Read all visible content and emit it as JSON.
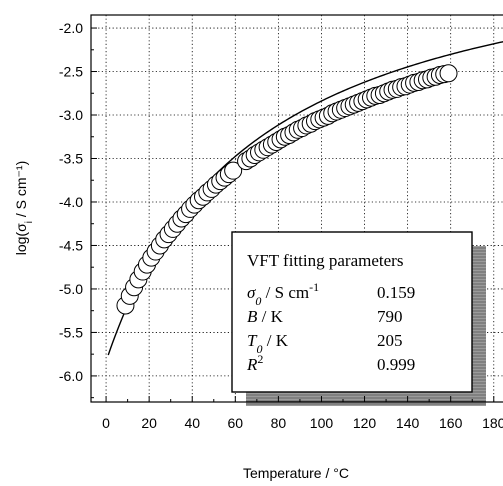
{
  "chart_data": {
    "type": "scatter",
    "xlabel": "Temperature / °C",
    "ylabel": "log(σi / S cm⁻¹)",
    "xlim": [
      -7,
      188
    ],
    "ylim": [
      -6.3,
      -1.85
    ],
    "xticks": [
      0,
      20,
      40,
      60,
      80,
      100,
      120,
      140,
      160,
      180
    ],
    "yticks": [
      -2.0,
      -2.5,
      -3.0,
      -3.5,
      -4.0,
      -4.5,
      -5.0,
      -5.5,
      -6.0
    ],
    "grid": true,
    "series": [
      {
        "kind": "markers",
        "marker": "open-circle",
        "x": [
          9,
          11,
          13,
          15,
          17,
          19,
          21,
          23,
          25,
          27,
          29,
          31,
          33,
          35,
          37,
          39,
          41,
          43,
          45,
          47,
          49,
          51,
          53,
          55,
          57,
          59,
          65,
          67,
          69,
          71,
          73,
          75,
          77,
          79,
          81,
          83,
          85,
          87,
          89,
          91,
          93,
          95,
          97,
          99,
          101,
          103,
          105,
          107,
          109,
          111,
          113,
          115,
          117,
          119,
          121,
          123,
          125,
          127,
          129,
          131,
          133,
          135,
          137,
          139,
          141,
          143,
          145,
          147,
          149,
          151,
          153,
          155,
          157,
          159
        ],
        "y": [
          -5.19,
          -5.08,
          -4.98,
          -4.89,
          -4.8,
          -4.72,
          -4.64,
          -4.57,
          -4.5,
          -4.43,
          -4.37,
          -4.31,
          -4.25,
          -4.19,
          -4.14,
          -4.08,
          -4.03,
          -3.98,
          -3.94,
          -3.89,
          -3.85,
          -3.8,
          -3.76,
          -3.72,
          -3.68,
          -3.64,
          -3.53,
          -3.5,
          -3.46,
          -3.43,
          -3.4,
          -3.37,
          -3.34,
          -3.31,
          -3.28,
          -3.25,
          -3.23,
          -3.2,
          -3.17,
          -3.15,
          -3.12,
          -3.1,
          -3.07,
          -3.05,
          -3.03,
          -3.01,
          -2.98,
          -2.96,
          -2.94,
          -2.92,
          -2.9,
          -2.88,
          -2.86,
          -2.84,
          -2.82,
          -2.8,
          -2.78,
          -2.77,
          -2.75,
          -2.73,
          -2.71,
          -2.7,
          -2.68,
          -2.67,
          -2.65,
          -2.63,
          -2.62,
          -2.6,
          -2.59,
          -2.57,
          -2.56,
          -2.54,
          -2.53,
          -2.52
        ]
      },
      {
        "kind": "fit-line",
        "style": "solid black",
        "sigma0": 0.159,
        "B": 790,
        "T0": 205
      }
    ],
    "legend": {
      "position": "bottom-right",
      "title": "VFT fitting parameters",
      "rows": [
        {
          "label_sym": "σ",
          "label_sub": "0",
          "label_rest": " / S cm",
          "label_sup": "-1",
          "value": "0.159"
        },
        {
          "label_sym": "B",
          "label_sub": "",
          "label_rest": " / K",
          "label_sup": "",
          "value": "790"
        },
        {
          "label_sym": "T",
          "label_sub": "0",
          "label_rest": " / K",
          "label_sup": "",
          "value": "205"
        },
        {
          "label_sym": "R",
          "label_sub": "",
          "label_rest": "",
          "label_sup": "2",
          "value": "0.999"
        }
      ]
    }
  }
}
